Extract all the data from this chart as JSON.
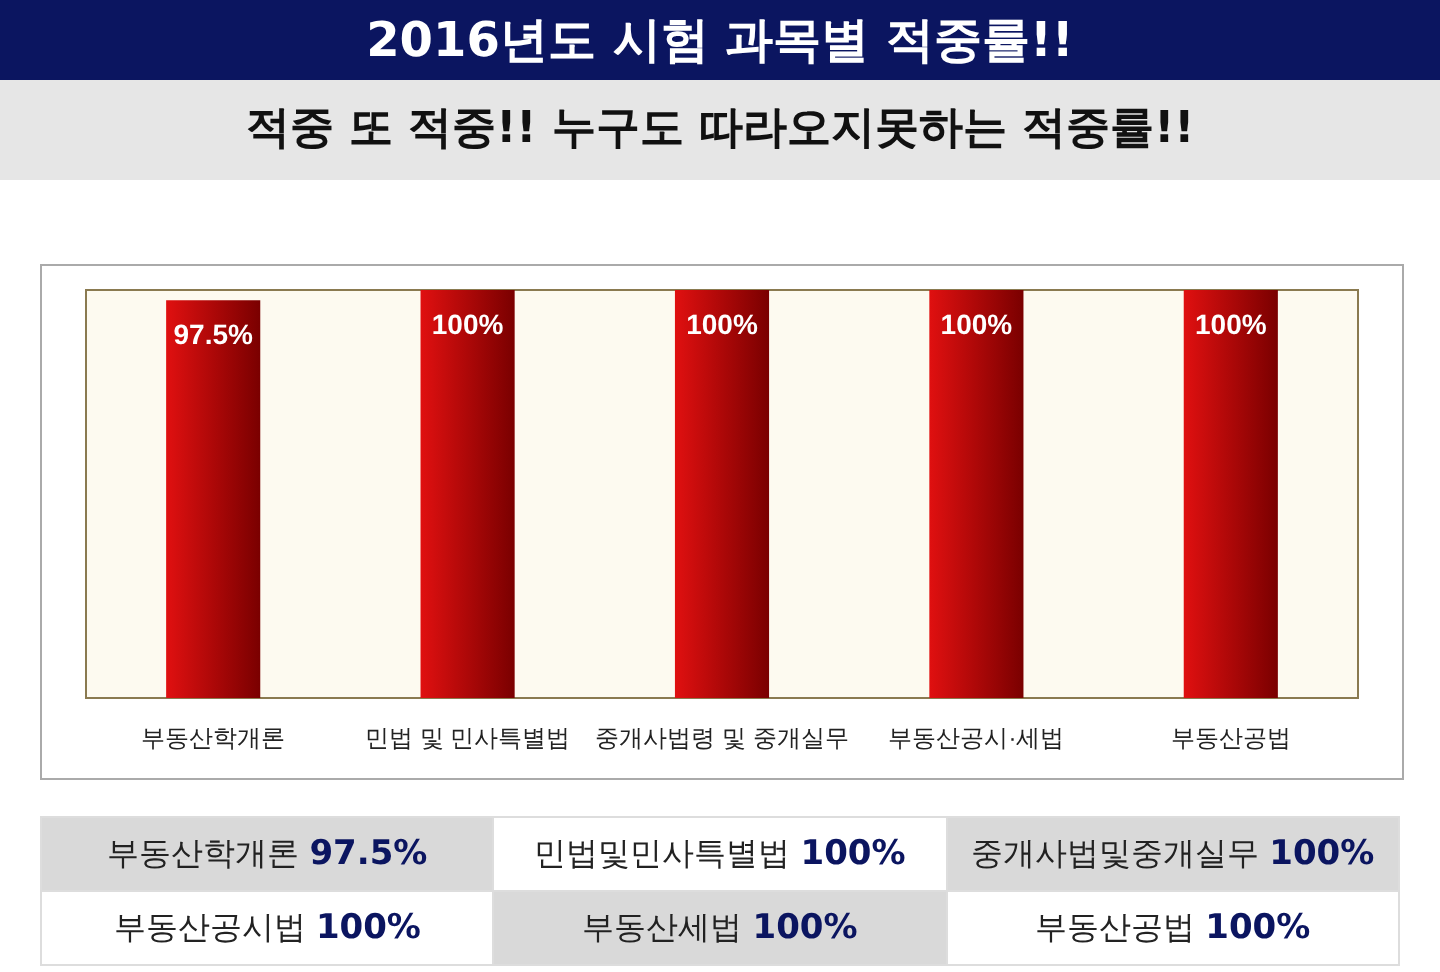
{
  "chart_data": {
    "type": "bar",
    "title": "2016년도 시험 과목별 적중률!!",
    "subtitle": "적중 또 적중!! 누구도 따라오지못하는 적중률!!",
    "categories": [
      "부동산학개론",
      "민법 및 민사특별법",
      "중개사법령 및 중개실무",
      "부동산공시·세법",
      "부동산공법"
    ],
    "values": [
      97.5,
      100,
      100,
      100,
      100
    ],
    "value_labels": [
      "97.5%",
      "100%",
      "100%",
      "100%",
      "100%"
    ],
    "color": "#e01010",
    "ylim": [
      0,
      100
    ],
    "tick_labels": "x",
    "annotations": [
      "부동산학개론 97.5%",
      "민법및민사특별법 100%",
      "중개사법및중개실무 100%",
      "부동산공시법 100%",
      "부동산세법 100%",
      "부동산공법 100%"
    ]
  }
}
